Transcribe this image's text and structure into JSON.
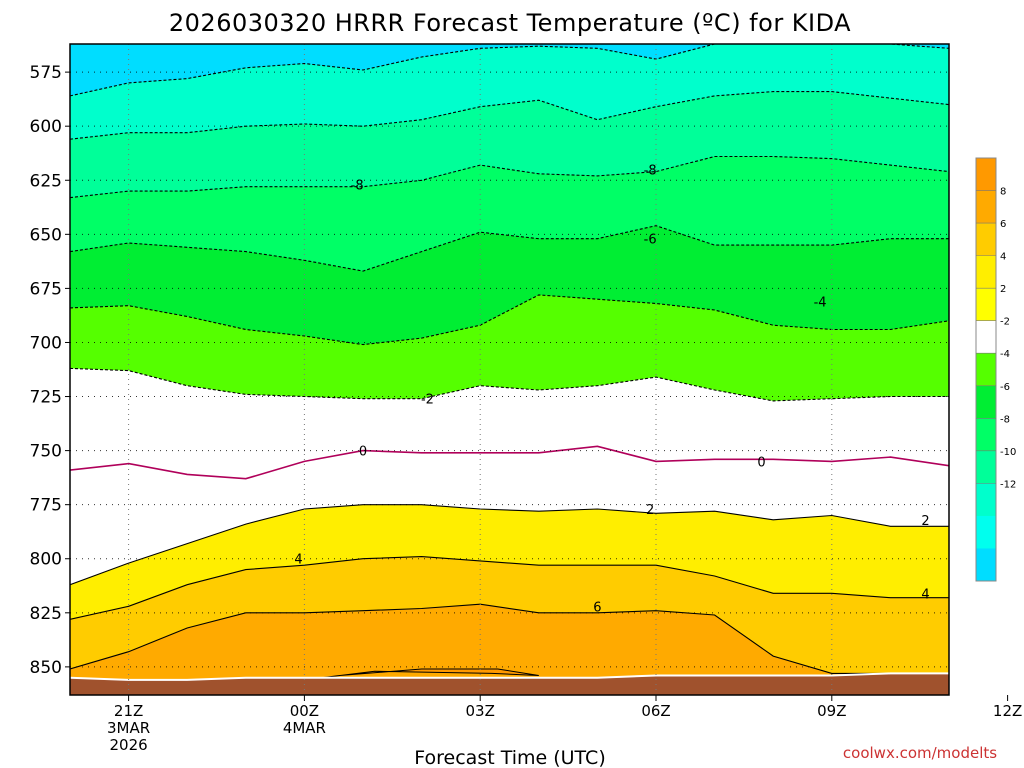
{
  "chart_data": {
    "type": "contour",
    "title": "2026030320 HRRR Forecast Temperature (ºC) for KIDA",
    "xlabel": "Forecast Time (UTC)",
    "credit": "coolwx.com/modelts",
    "x_hours": [
      -1,
      0,
      1,
      2,
      3,
      4,
      5,
      6,
      7,
      8,
      9,
      10,
      11,
      12,
      13,
      14
    ],
    "x_range_hours": [
      -1,
      14
    ],
    "y_range_hpa": [
      562,
      863
    ],
    "x_ticks": [
      {
        "hour": 0,
        "lines": [
          "21Z",
          "3MAR",
          "2026"
        ]
      },
      {
        "hour": 3,
        "lines": [
          "00Z",
          "4MAR"
        ]
      },
      {
        "hour": 6,
        "lines": [
          "03Z"
        ]
      },
      {
        "hour": 9,
        "lines": [
          "06Z"
        ]
      },
      {
        "hour": 12,
        "lines": [
          "09Z"
        ]
      },
      {
        "hour": 15,
        "lines": [
          "12Z"
        ]
      }
    ],
    "y_ticks": [
      575,
      600,
      625,
      650,
      675,
      700,
      725,
      750,
      775,
      800,
      825,
      850
    ],
    "ground": {
      "pressure_hpa": [
        855,
        856,
        856,
        855,
        855,
        855,
        855,
        855,
        855,
        855,
        854,
        854,
        854,
        854,
        853,
        853
      ],
      "color": "#a0522d"
    },
    "contours": [
      {
        "level": -12,
        "pressure_hpa": [
          586,
          580,
          578,
          573,
          571,
          574,
          568,
          564,
          563,
          564,
          569,
          562,
          562,
          562,
          562,
          564
        ]
      },
      {
        "level": -10,
        "pressure_hpa": [
          606,
          603,
          603,
          600,
          599,
          600,
          597,
          591,
          588,
          597,
          591,
          586,
          584,
          584,
          587,
          590
        ]
      },
      {
        "level": -8,
        "pressure_hpa": [
          633,
          630,
          630,
          628,
          628,
          628,
          625,
          618,
          622,
          623,
          621,
          614,
          614,
          615,
          618,
          621
        ]
      },
      {
        "level": -6,
        "pressure_hpa": [
          658,
          654,
          656,
          658,
          662,
          667,
          658,
          649,
          652,
          652,
          646,
          655,
          655,
          655,
          652,
          652
        ]
      },
      {
        "level": -4,
        "pressure_hpa": [
          684,
          683,
          688,
          694,
          697,
          701,
          698,
          692,
          678,
          680,
          682,
          685,
          692,
          694,
          694,
          690
        ]
      },
      {
        "level": -2,
        "pressure_hpa": [
          712,
          713,
          720,
          724,
          725,
          726,
          726,
          720,
          722,
          720,
          716,
          722,
          727,
          726,
          725,
          725
        ]
      },
      {
        "level": 0,
        "pressure_hpa": [
          759,
          756,
          761,
          763,
          755,
          750,
          751,
          751,
          751,
          748,
          755,
          754,
          754,
          755,
          753,
          757
        ]
      },
      {
        "level": 2,
        "pressure_hpa": [
          812,
          802,
          793,
          784,
          777,
          775,
          775,
          777,
          778,
          777,
          779,
          778,
          782,
          780,
          785,
          785
        ]
      },
      {
        "level": 4,
        "pressure_hpa": [
          828,
          822,
          812,
          805,
          803,
          800,
          799,
          801,
          803,
          803,
          803,
          808,
          816,
          816,
          818,
          818
        ]
      },
      {
        "level": 6,
        "pressure_hpa": [
          851,
          843,
          832,
          825,
          825,
          824,
          823,
          821,
          825,
          825,
          824,
          826,
          845,
          853,
          853,
          853
        ]
      }
    ],
    "contour_labels": [
      {
        "text": "-8",
        "hour": 3.9,
        "pressure_hpa": 627
      },
      {
        "text": "-8",
        "hour": 8.9,
        "pressure_hpa": 620
      },
      {
        "text": "-6",
        "hour": 8.9,
        "pressure_hpa": 652
      },
      {
        "text": "-4",
        "hour": 11.8,
        "pressure_hpa": 681
      },
      {
        "text": "-2",
        "hour": 5.1,
        "pressure_hpa": 726
      },
      {
        "text": "0",
        "hour": 4.0,
        "pressure_hpa": 750
      },
      {
        "text": "0",
        "hour": 10.8,
        "pressure_hpa": 755
      },
      {
        "text": "2",
        "hour": 8.9,
        "pressure_hpa": 777
      },
      {
        "text": "2",
        "hour": 13.6,
        "pressure_hpa": 782
      },
      {
        "text": "4",
        "hour": 2.9,
        "pressure_hpa": 800
      },
      {
        "text": "4",
        "hour": 13.6,
        "pressure_hpa": 816
      },
      {
        "text": "6",
        "hour": 8.0,
        "pressure_hpa": 822
      }
    ],
    "colorbar": {
      "labels": [
        "8",
        "6",
        "4",
        "2",
        "-2",
        "-4",
        "-6",
        "-8",
        "-10",
        "-12"
      ],
      "colors": [
        "#ff9900",
        "#ffaa00",
        "#ffcc00",
        "#ffee00",
        "#ffff00",
        "#ffffff",
        "#55ff00",
        "#00ee33",
        "#00ff66",
        "#00ff99",
        "#00ffcc",
        "#00ffee",
        "#00ddff"
      ]
    },
    "fill_bands": [
      {
        "low": 6,
        "color": "#ffaa00"
      },
      {
        "low": 4,
        "color": "#ffcc00"
      },
      {
        "low": 2,
        "color": "#ffee00"
      },
      {
        "low": -2,
        "color": "#ffffff"
      },
      {
        "low": -4,
        "color": "#55ff00"
      },
      {
        "low": -6,
        "color": "#00ee33"
      },
      {
        "low": -8,
        "color": "#00ff66"
      },
      {
        "low": -10,
        "color": "#00ff99"
      },
      {
        "low": -12,
        "color": "#00ffcc"
      }
    ],
    "coldest_fill": "#00ddff",
    "warm_core_color": "#ff9900"
  }
}
